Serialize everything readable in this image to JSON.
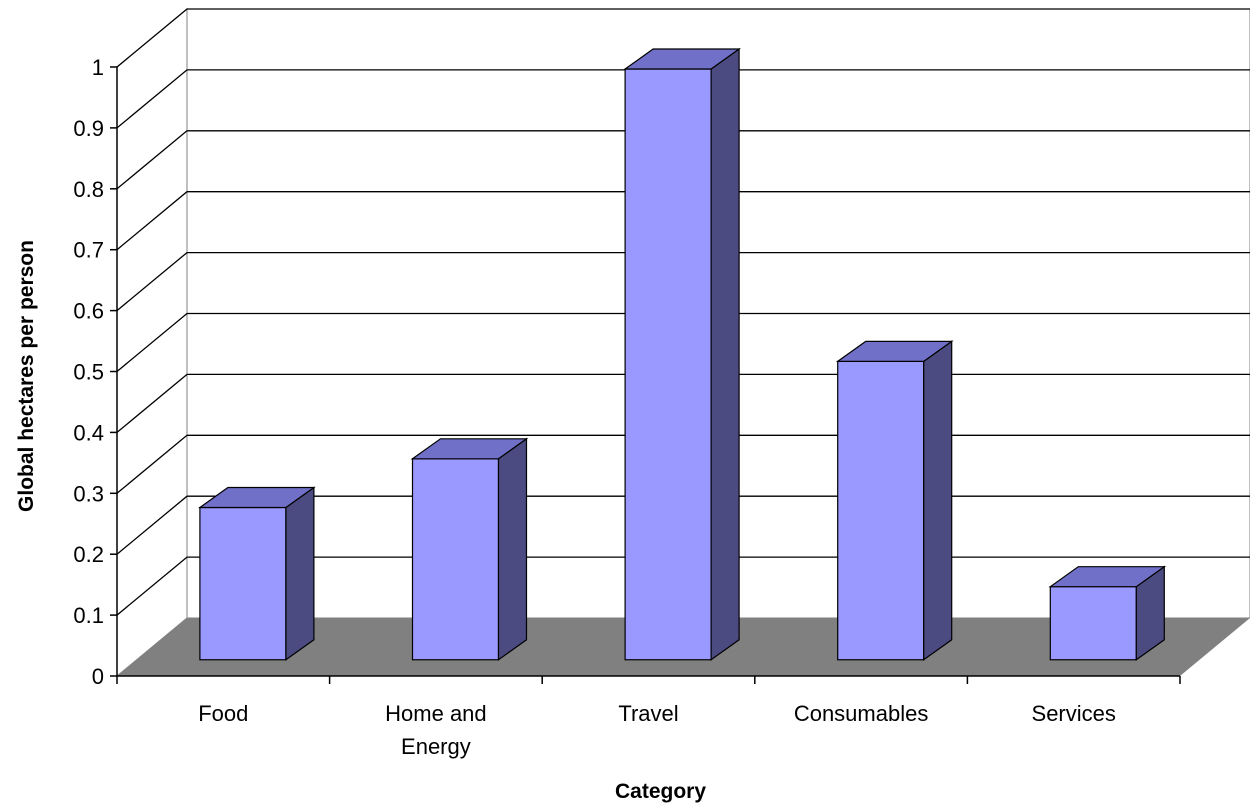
{
  "chart_data": {
    "type": "bar",
    "categories": [
      "Food",
      "Home and Energy",
      "Travel",
      "Consumables",
      "Services"
    ],
    "category_lines": [
      [
        "Food"
      ],
      [
        "Home and",
        "Energy"
      ],
      [
        "Travel"
      ],
      [
        "Consumables"
      ],
      [
        "Services"
      ]
    ],
    "values": [
      0.25,
      0.33,
      0.97,
      0.49,
      0.12
    ],
    "title": "",
    "xlabel": "Category",
    "ylabel": "Global hectares per person",
    "ylim": [
      0,
      1
    ],
    "yticks": [
      "0",
      "0.1",
      "0.2",
      "0.3",
      "0.4",
      "0.5",
      "0.6",
      "0.7",
      "0.8",
      "0.9",
      "1"
    ],
    "grid": true,
    "style": "3d-column",
    "colors": {
      "bar_front": "#9999ff",
      "bar_side": "#4b4b82",
      "bar_top": "#7070c8",
      "floor": "#808080"
    }
  }
}
